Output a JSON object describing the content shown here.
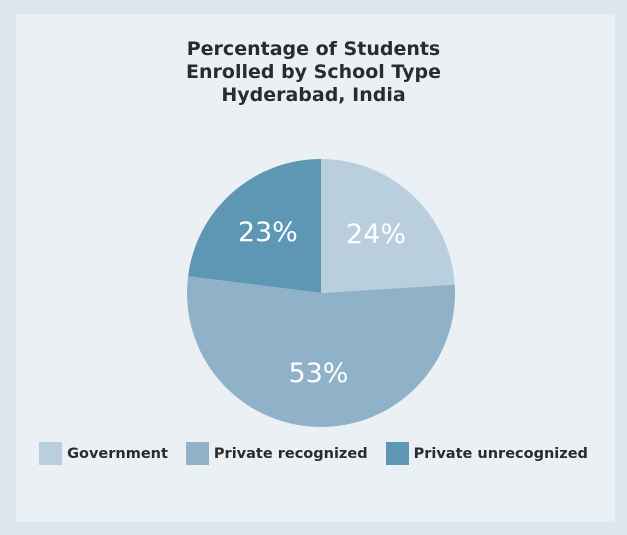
{
  "chart_data": {
    "type": "pie",
    "title": "Percentage of Students Enrolled by School Type Hyderabad, India",
    "title_lines": [
      "Percentage of Students",
      "Enrolled by School Type",
      "Hyderabad, India"
    ],
    "slices": [
      {
        "label": "Government",
        "value": 24,
        "display": "24%",
        "color": "#b9cfdd"
      },
      {
        "label": "Private recognized",
        "value": 53,
        "display": "53%",
        "color": "#8fb2c8"
      },
      {
        "label": "Private unrecognized",
        "value": 23,
        "display": "23%",
        "color": "#5e97b3"
      }
    ],
    "start_angle": "12 o'clock",
    "direction": "clockwise",
    "legend_position": "bottom"
  }
}
